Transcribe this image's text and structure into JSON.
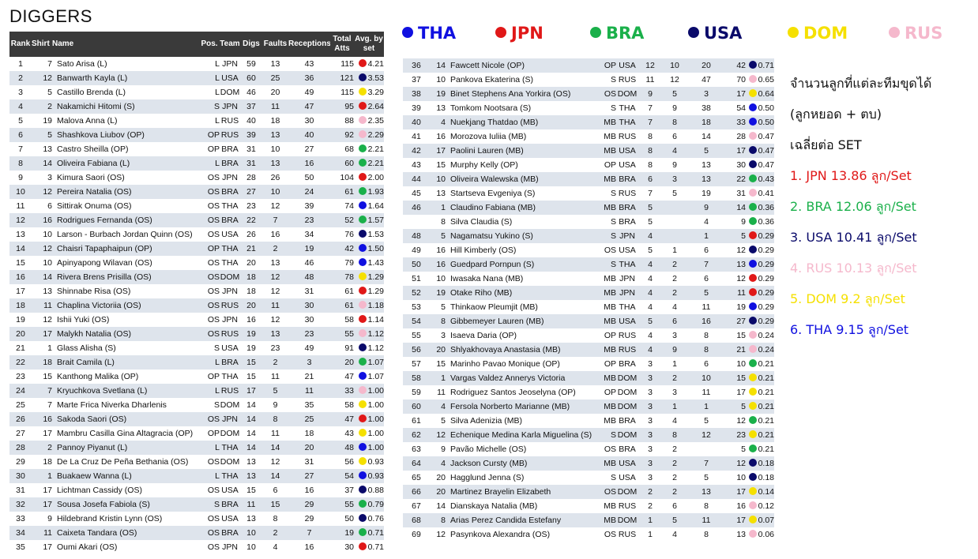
{
  "title": "DIGGERS",
  "colors": {
    "THA": "#1010e0",
    "JPN": "#e01818",
    "BRA": "#1ab04a",
    "USA": "#0a0a6a",
    "DOM": "#f5e000",
    "RUS": "#f5b8cc"
  },
  "headers": {
    "rank": "Rank",
    "shirt": "Shirt",
    "name": "Name",
    "pos": "Pos.",
    "team": "Team",
    "digs": "Digs",
    "faults": "Faults",
    "receptions": "Receptions",
    "total_atts": "Total Atts",
    "avg": "Avg. by set"
  },
  "legend": [
    "THA",
    "JPN",
    "BRA",
    "USA",
    "DOM",
    "RUS"
  ],
  "notes": {
    "line1": "จำนวนลูกที่แต่ละทีมขุดได้",
    "line2": "(ลูกหยอด + ตบ)",
    "line3": "เฉลี่ยต่อ SET",
    "rankings": [
      {
        "text": "1. JPN 13.86 ลูก/Set",
        "team": "JPN"
      },
      {
        "text": "2. BRA 12.06 ลูก/Set",
        "team": "BRA"
      },
      {
        "text": "3. USA 10.41 ลูก/Set",
        "team": "USA"
      },
      {
        "text": "4. RUS 10.13 ลูก/Set",
        "team": "RUS"
      },
      {
        "text": "5. DOM 9.2 ลูก/Set",
        "team": "DOM"
      },
      {
        "text": "6. THA 9.15 ลูก/Set",
        "team": "THA"
      }
    ]
  },
  "left_rows": [
    [
      "1",
      "7",
      "Sato Arisa (L)",
      "L",
      "JPN",
      "59",
      "13",
      "43",
      "115",
      "4.21"
    ],
    [
      "2",
      "12",
      "Banwarth Kayla (L)",
      "L",
      "USA",
      "60",
      "25",
      "36",
      "121",
      "3.53"
    ],
    [
      "3",
      "5",
      "Castillo Brenda (L)",
      "L",
      "DOM",
      "46",
      "20",
      "49",
      "115",
      "3.29"
    ],
    [
      "4",
      "2",
      "Nakamichi Hitomi (S)",
      "S",
      "JPN",
      "37",
      "11",
      "47",
      "95",
      "2.64"
    ],
    [
      "5",
      "19",
      "Malova Anna (L)",
      "L",
      "RUS",
      "40",
      "18",
      "30",
      "88",
      "2.35"
    ],
    [
      "6",
      "5",
      "Shashkova Liubov (OP)",
      "OP",
      "RUS",
      "39",
      "13",
      "40",
      "92",
      "2.29"
    ],
    [
      "7",
      "13",
      "Castro Sheilla (OP)",
      "OP",
      "BRA",
      "31",
      "10",
      "27",
      "68",
      "2.21"
    ],
    [
      "8",
      "14",
      "Oliveira Fabiana (L)",
      "L",
      "BRA",
      "31",
      "13",
      "16",
      "60",
      "2.21"
    ],
    [
      "9",
      "3",
      "Kimura Saori (OS)",
      "OS",
      "JPN",
      "28",
      "26",
      "50",
      "104",
      "2.00"
    ],
    [
      "10",
      "12",
      "Pereira Natalia (OS)",
      "OS",
      "BRA",
      "27",
      "10",
      "24",
      "61",
      "1.93"
    ],
    [
      "11",
      "6",
      "Sittirak Onuma (OS)",
      "OS",
      "THA",
      "23",
      "12",
      "39",
      "74",
      "1.64"
    ],
    [
      "12",
      "16",
      "Rodrigues Fernanda (OS)",
      "OS",
      "BRA",
      "22",
      "7",
      "23",
      "52",
      "1.57"
    ],
    [
      "13",
      "10",
      "Larson - Burbach Jordan Quinn (OS)",
      "OS",
      "USA",
      "26",
      "16",
      "34",
      "76",
      "1.53"
    ],
    [
      "14",
      "12",
      "Chaisri Tapaphaipun (OP)",
      "OP",
      "THA",
      "21",
      "2",
      "19",
      "42",
      "1.50"
    ],
    [
      "15",
      "10",
      "Apinyapong Wilavan (OS)",
      "OS",
      "THA",
      "20",
      "13",
      "46",
      "79",
      "1.43"
    ],
    [
      "16",
      "14",
      "Rivera Brens Prisilla (OS)",
      "OS",
      "DOM",
      "18",
      "12",
      "48",
      "78",
      "1.29"
    ],
    [
      "17",
      "13",
      "Shinnabe Risa (OS)",
      "OS",
      "JPN",
      "18",
      "12",
      "31",
      "61",
      "1.29"
    ],
    [
      "18",
      "11",
      "Chaplina Victoriia (OS)",
      "OS",
      "RUS",
      "20",
      "11",
      "30",
      "61",
      "1.18"
    ],
    [
      "19",
      "12",
      "Ishii Yuki (OS)",
      "OS",
      "JPN",
      "16",
      "12",
      "30",
      "58",
      "1.14"
    ],
    [
      "20",
      "17",
      "Malykh Natalia (OS)",
      "OS",
      "RUS",
      "19",
      "13",
      "23",
      "55",
      "1.12"
    ],
    [
      "21",
      "1",
      "Glass Alisha (S)",
      "S",
      "USA",
      "19",
      "23",
      "49",
      "91",
      "1.12"
    ],
    [
      "22",
      "18",
      "Brait Camila (L)",
      "L",
      "BRA",
      "15",
      "2",
      "3",
      "20",
      "1.07"
    ],
    [
      "23",
      "15",
      "Kanthong Malika (OP)",
      "OP",
      "THA",
      "15",
      "11",
      "21",
      "47",
      "1.07"
    ],
    [
      "24",
      "7",
      "Kryuchkova Svetlana (L)",
      "L",
      "RUS",
      "17",
      "5",
      "11",
      "33",
      "1.00"
    ],
    [
      "25",
      "7",
      "Marte Frica Niverka Dharlenis",
      "S",
      "DOM",
      "14",
      "9",
      "35",
      "58",
      "1.00"
    ],
    [
      "26",
      "16",
      "Sakoda Saori (OS)",
      "OS",
      "JPN",
      "14",
      "8",
      "25",
      "47",
      "1.00"
    ],
    [
      "27",
      "17",
      "Mambru Casilla Gina Altagracia (OP)",
      "OP",
      "DOM",
      "14",
      "11",
      "18",
      "43",
      "1.00"
    ],
    [
      "28",
      "2",
      "Pannoy Piyanut (L)",
      "L",
      "THA",
      "14",
      "14",
      "20",
      "48",
      "1.00"
    ],
    [
      "29",
      "18",
      "De La Cruz De Peña Bethania (OS)",
      "OS",
      "DOM",
      "13",
      "12",
      "31",
      "56",
      "0.93"
    ],
    [
      "30",
      "1",
      "Buakaew Wanna (L)",
      "L",
      "THA",
      "13",
      "14",
      "27",
      "54",
      "0.93"
    ],
    [
      "31",
      "17",
      "Lichtman Cassidy (OS)",
      "OS",
      "USA",
      "15",
      "6",
      "16",
      "37",
      "0.88"
    ],
    [
      "32",
      "17",
      "Sousa Josefa Fabiola (S)",
      "S",
      "BRA",
      "11",
      "15",
      "29",
      "55",
      "0.79"
    ],
    [
      "33",
      "9",
      "Hildebrand Kristin Lynn (OS)",
      "OS",
      "USA",
      "13",
      "8",
      "29",
      "50",
      "0.76"
    ],
    [
      "34",
      "11",
      "Caixeta Tandara (OS)",
      "OS",
      "BRA",
      "10",
      "2",
      "7",
      "19",
      "0.71"
    ],
    [
      "35",
      "17",
      "Oumi Akari (OS)",
      "OS",
      "JPN",
      "10",
      "4",
      "16",
      "30",
      "0.71"
    ]
  ],
  "right_rows": [
    [
      "36",
      "14",
      "Fawcett Nicole (OP)",
      "OP",
      "USA",
      "12",
      "10",
      "20",
      "42",
      "0.71"
    ],
    [
      "37",
      "10",
      "Pankova Ekaterina (S)",
      "S",
      "RUS",
      "11",
      "12",
      "47",
      "70",
      "0.65"
    ],
    [
      "38",
      "19",
      "Binet Stephens Ana Yorkira (OS)",
      "OS",
      "DOM",
      "9",
      "5",
      "3",
      "17",
      "0.64"
    ],
    [
      "39",
      "13",
      "Tomkom Nootsara (S)",
      "S",
      "THA",
      "7",
      "9",
      "38",
      "54",
      "0.50"
    ],
    [
      "40",
      "4",
      "Nuekjang Thatdao (MB)",
      "MB",
      "THA",
      "7",
      "8",
      "18",
      "33",
      "0.50"
    ],
    [
      "41",
      "16",
      "Morozova Iuliia (MB)",
      "MB",
      "RUS",
      "8",
      "6",
      "14",
      "28",
      "0.47"
    ],
    [
      "42",
      "17",
      "Paolini Lauren (MB)",
      "MB",
      "USA",
      "8",
      "4",
      "5",
      "17",
      "0.47"
    ],
    [
      "43",
      "15",
      "Murphy Kelly (OP)",
      "OP",
      "USA",
      "8",
      "9",
      "13",
      "30",
      "0.47"
    ],
    [
      "44",
      "10",
      "Oliveira Walewska (MB)",
      "MB",
      "BRA",
      "6",
      "3",
      "13",
      "22",
      "0.43"
    ],
    [
      "45",
      "13",
      "Startseva Evgeniya (S)",
      "S",
      "RUS",
      "7",
      "5",
      "19",
      "31",
      "0.41"
    ],
    [
      "46",
      "1",
      "Claudino Fabiana (MB)",
      "MB",
      "BRA",
      "5",
      "",
      "9",
      "14",
      "0.36"
    ],
    [
      "",
      "8",
      "Silva Claudia (S)",
      "S",
      "BRA",
      "5",
      "",
      "4",
      "9",
      "0.36"
    ],
    [
      "48",
      "5",
      "Nagamatsu Yukino (S)",
      "S",
      "JPN",
      "4",
      "",
      "1",
      "5",
      "0.29"
    ],
    [
      "49",
      "16",
      "Hill Kimberly (OS)",
      "OS",
      "USA",
      "5",
      "1",
      "6",
      "12",
      "0.29"
    ],
    [
      "50",
      "16",
      "Guedpard Pornpun (S)",
      "S",
      "THA",
      "4",
      "2",
      "7",
      "13",
      "0.29"
    ],
    [
      "51",
      "10",
      "Iwasaka Nana (MB)",
      "MB",
      "JPN",
      "4",
      "2",
      "6",
      "12",
      "0.29"
    ],
    [
      "52",
      "19",
      "Otake Riho (MB)",
      "MB",
      "JPN",
      "4",
      "2",
      "5",
      "11",
      "0.29"
    ],
    [
      "53",
      "5",
      "Thinkaow Pleumjit (MB)",
      "MB",
      "THA",
      "4",
      "4",
      "11",
      "19",
      "0.29"
    ],
    [
      "54",
      "8",
      "Gibbemeyer Lauren (MB)",
      "MB",
      "USA",
      "5",
      "6",
      "16",
      "27",
      "0.29"
    ],
    [
      "55",
      "3",
      "Isaeva Daria (OP)",
      "OP",
      "RUS",
      "4",
      "3",
      "8",
      "15",
      "0.24"
    ],
    [
      "56",
      "20",
      "Shlyakhovaya Anastasia (MB)",
      "MB",
      "RUS",
      "4",
      "9",
      "8",
      "21",
      "0.24"
    ],
    [
      "57",
      "15",
      "Marinho Pavao Monique (OP)",
      "OP",
      "BRA",
      "3",
      "1",
      "6",
      "10",
      "0.21"
    ],
    [
      "58",
      "1",
      "Vargas Valdez Annerys Victoria",
      "MB",
      "DOM",
      "3",
      "2",
      "10",
      "15",
      "0.21"
    ],
    [
      "59",
      "11",
      "Rodriguez Santos Jeoselyna (OP)",
      "OP",
      "DOM",
      "3",
      "3",
      "11",
      "17",
      "0.21"
    ],
    [
      "60",
      "4",
      "Fersola Norberto Marianne (MB)",
      "MB",
      "DOM",
      "3",
      "1",
      "1",
      "5",
      "0.21"
    ],
    [
      "61",
      "5",
      "Silva Adenizia (MB)",
      "MB",
      "BRA",
      "3",
      "4",
      "5",
      "12",
      "0.21"
    ],
    [
      "62",
      "12",
      "Echenique Medina Karla Miguelina (S)",
      "S",
      "DOM",
      "3",
      "8",
      "12",
      "23",
      "0.21"
    ],
    [
      "63",
      "9",
      "Pavão Michelle (OS)",
      "OS",
      "BRA",
      "3",
      "2",
      "",
      "5",
      "0.21"
    ],
    [
      "64",
      "4",
      "Jackson Cursty (MB)",
      "MB",
      "USA",
      "3",
      "2",
      "7",
      "12",
      "0.18"
    ],
    [
      "65",
      "20",
      "Hagglund Jenna (S)",
      "S",
      "USA",
      "3",
      "2",
      "5",
      "10",
      "0.18"
    ],
    [
      "66",
      "20",
      "Martinez Brayelin Elizabeth",
      "OS",
      "DOM",
      "2",
      "2",
      "13",
      "17",
      "0.14"
    ],
    [
      "67",
      "14",
      "Dianskaya Natalia (MB)",
      "MB",
      "RUS",
      "2",
      "6",
      "8",
      "16",
      "0.12"
    ],
    [
      "68",
      "8",
      "Arias Perez Candida Estefany",
      "MB",
      "DOM",
      "1",
      "5",
      "11",
      "17",
      "0.07"
    ],
    [
      "69",
      "12",
      "Pasynkova Alexandra (OS)",
      "OS",
      "RUS",
      "1",
      "4",
      "8",
      "13",
      "0.06"
    ]
  ]
}
